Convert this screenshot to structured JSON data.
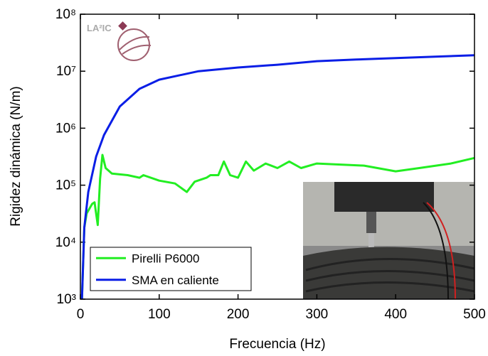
{
  "chart_data": {
    "type": "line",
    "x_label": "Frecuencia (Hz)",
    "y_label": "Rigidez dinámica (N/m)",
    "annotations": [
      "LA²IC"
    ],
    "xlim": [
      0,
      500
    ],
    "xticks": [
      0,
      100,
      200,
      300,
      400,
      500
    ],
    "ylim": [
      1000,
      100000000
    ],
    "y_scale": "log",
    "yticks": [
      {
        "value": 1000,
        "label": "10³"
      },
      {
        "value": 10000,
        "label": "10⁴"
      },
      {
        "value": 100000,
        "label": "10⁵"
      },
      {
        "value": 1000000,
        "label": "10⁶"
      },
      {
        "value": 10000000,
        "label": "10⁷"
      },
      {
        "value": 100000000,
        "label": "10⁸"
      }
    ],
    "grid": false,
    "legend": "lower-left",
    "series": [
      {
        "name": "Pirelli P6000",
        "color": "#22ee22",
        "x": [
          2,
          5,
          8,
          15,
          18,
          22,
          25,
          28,
          32,
          40,
          60,
          75,
          80,
          100,
          120,
          135,
          145,
          160,
          165,
          175,
          182,
          190,
          200,
          210,
          220,
          235,
          250,
          265,
          280,
          300,
          330,
          360,
          400,
          430,
          470,
          500
        ],
        "values": [
          1000,
          18000,
          32000,
          47000,
          50000,
          20000,
          130000,
          340000,
          200000,
          160000,
          150000,
          135000,
          150000,
          120000,
          107000,
          76000,
          115000,
          135000,
          150000,
          150000,
          260000,
          150000,
          135000,
          260000,
          180000,
          240000,
          200000,
          260000,
          200000,
          240000,
          230000,
          220000,
          175000,
          200000,
          240000,
          300000
        ]
      },
      {
        "name": "SMA en caliente",
        "color": "#0a1ee6",
        "x": [
          2,
          5,
          10,
          20,
          30,
          50,
          75,
          100,
          150,
          200,
          250,
          300,
          350,
          400,
          450,
          500
        ],
        "values": [
          1000,
          18000,
          76000,
          320000,
          760000,
          2400000,
          4900000,
          7100000,
          10000000,
          11600000,
          13000000,
          15000000,
          16000000,
          17000000,
          18000000,
          19000000
        ]
      }
    ]
  }
}
